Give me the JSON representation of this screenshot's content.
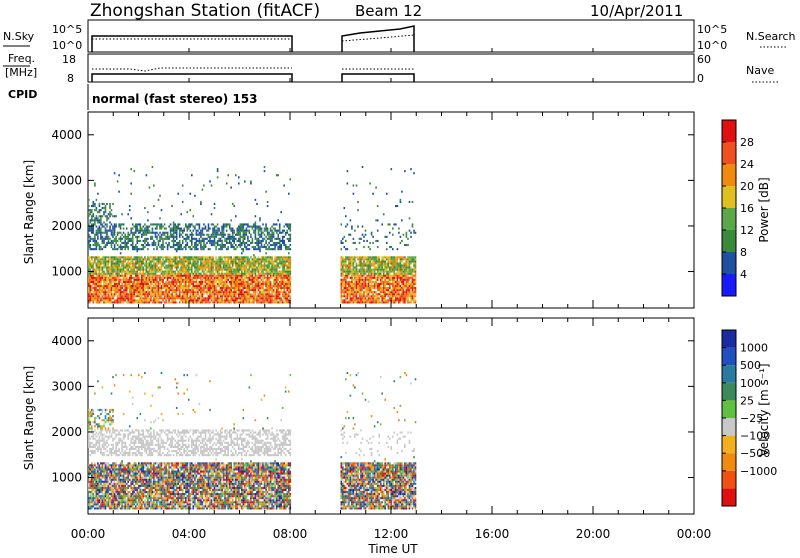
{
  "header": {
    "station": "Zhongshan Station (fitACF)",
    "beam": "Beam 12",
    "date": "10/Apr/2011"
  },
  "param_panels": {
    "nsky_label": "N.Sky",
    "nsky_ticks": [
      "10^5",
      "10^0"
    ],
    "nsearch_label": "N.Search",
    "nsearch_ticks": [
      "10^5",
      "10^0"
    ],
    "freq_label_1": "Freq.",
    "freq_label_2": "[MHz]",
    "freq_ticks": [
      "18",
      "8"
    ],
    "nave_label": "Nave",
    "nave_ticks": [
      "60",
      "0"
    ],
    "cpid_label": "CPID",
    "cpid_text": "normal (fast stereo) 153"
  },
  "time_axis": {
    "ticks": [
      "00:00",
      "04:00",
      "08:00",
      "12:00",
      "16:00",
      "20:00",
      "00:00"
    ],
    "label": "Time UT"
  },
  "colors": {
    "power_scale": [
      "#1a1aff",
      "#2050a0",
      "#3a8a3a",
      "#5aa84a",
      "#e0c020",
      "#f08a10",
      "#f05020",
      "#e01010"
    ],
    "velocity_scale": [
      "#e01010",
      "#f05010",
      "#f08a10",
      "#f0b020",
      "#c8c8c8",
      "#60c040",
      "#3a8a5a",
      "#2a7aa0",
      "#2050c0",
      "#1a2aa0"
    ]
  },
  "chart_data": [
    {
      "type": "heatmap",
      "title": "Power",
      "ylabel": "Slant Range [km]",
      "ylim": [
        200,
        4500
      ],
      "xlim_hours": [
        0,
        24
      ],
      "y_ticks": [
        1000,
        2000,
        3000,
        4000
      ],
      "colorbar_label": "Power [dB]",
      "colorbar_ticks": [
        "4",
        "8",
        "12",
        "16",
        "20",
        "24",
        "28"
      ],
      "data_intervals_hours": [
        [
          0,
          8
        ],
        [
          10,
          13
        ]
      ]
    },
    {
      "type": "heatmap",
      "title": "Velocity",
      "ylabel": "Slant Range [km]",
      "ylim": [
        200,
        4500
      ],
      "xlim_hours": [
        0,
        24
      ],
      "y_ticks": [
        1000,
        2000,
        3000,
        4000
      ],
      "colorbar_label": "Velocity [m s⁻¹]",
      "colorbar_ticks": [
        "1000",
        "500",
        "100",
        "25",
        "−25",
        "−100",
        "−500",
        "−1000"
      ],
      "data_intervals_hours": [
        [
          0,
          8
        ],
        [
          10,
          13
        ]
      ]
    }
  ]
}
